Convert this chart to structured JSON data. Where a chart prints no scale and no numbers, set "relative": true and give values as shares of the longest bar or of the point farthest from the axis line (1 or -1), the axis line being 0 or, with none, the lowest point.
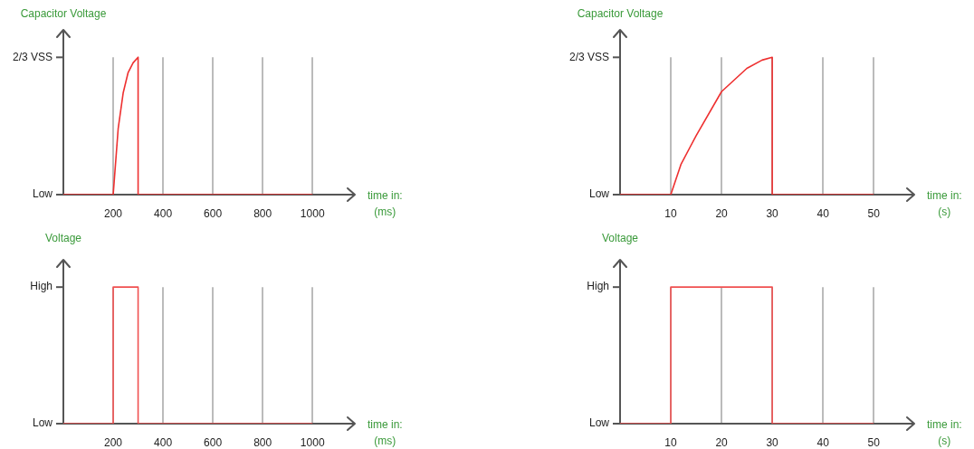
{
  "chart_data": [
    {
      "type": "line",
      "relative": true,
      "ylabel": "Capacitor Voltage",
      "xlabel": "time in:\n(ms)",
      "xlim": [
        0,
        1170
      ],
      "xticks": [
        200,
        400,
        600,
        800,
        1000
      ],
      "annotations": [
        "Low",
        "2/3 VSS"
      ],
      "grid": "x",
      "legend": false,
      "marker": "none",
      "series": [
        {
          "color": "#ee3030",
          "x": [
            0,
            200,
            220,
            240,
            260,
            280,
            300,
            300,
            1000
          ],
          "values": [
            0,
            0,
            0.48,
            0.74,
            0.89,
            0.96,
            1,
            0,
            0
          ]
        }
      ]
    },
    {
      "type": "line",
      "relative": true,
      "ylabel": "Capacitor Voltage",
      "xlabel": "time in:\n(s)",
      "xlim": [
        0,
        58
      ],
      "xticks": [
        10,
        20,
        30,
        40,
        50
      ],
      "annotations": [
        "Low",
        "2/3 VSS"
      ],
      "grid": "x",
      "legend": false,
      "marker": "none",
      "series": [
        {
          "color": "#ee3030",
          "x": [
            0,
            10,
            12,
            15,
            20,
            25,
            28,
            30,
            30,
            50
          ],
          "values": [
            0,
            0,
            0.22,
            0.43,
            0.75,
            0.92,
            0.98,
            1,
            0,
            0
          ]
        }
      ]
    },
    {
      "type": "line",
      "relative": true,
      "ylabel": "Voltage",
      "xlabel": "time in:\n(ms)",
      "xlim": [
        0,
        1170
      ],
      "xticks": [
        200,
        400,
        600,
        800,
        1000
      ],
      "annotations": [
        "Low",
        "High"
      ],
      "grid": "x",
      "legend": false,
      "marker": "none",
      "series": [
        {
          "color": "#f05050",
          "x": [
            0,
            200,
            200,
            300,
            300,
            1000
          ],
          "values": [
            0,
            0,
            1,
            1,
            0,
            0
          ]
        }
      ]
    },
    {
      "type": "line",
      "relative": true,
      "ylabel": "Voltage",
      "xlabel": "time in:\n(s)",
      "xlim": [
        0,
        58
      ],
      "xticks": [
        10,
        20,
        30,
        40,
        50
      ],
      "annotations": [
        "Low",
        "High"
      ],
      "grid": "x",
      "legend": false,
      "marker": "none",
      "series": [
        {
          "color": "#f05050",
          "x": [
            0,
            10,
            10,
            30,
            30,
            50
          ],
          "values": [
            0,
            0,
            1,
            1,
            0,
            0
          ]
        }
      ]
    }
  ]
}
